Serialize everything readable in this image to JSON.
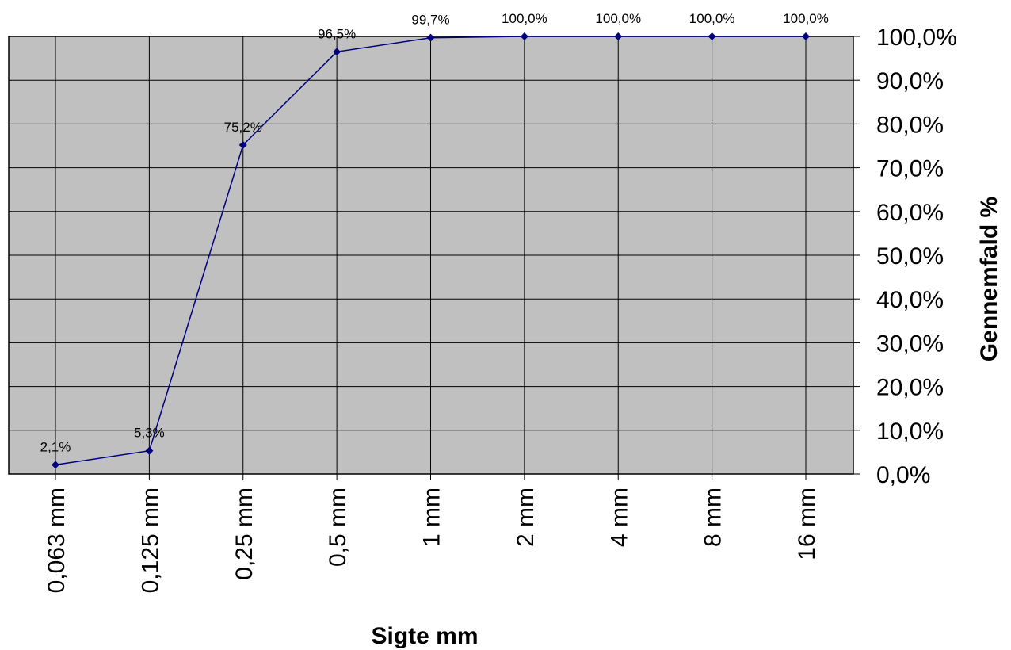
{
  "chart_data": {
    "type": "line",
    "title": "",
    "xlabel": "Sigte mm",
    "ylabel": "Gennemfald %",
    "categories": [
      "0,063 mm",
      "0,125 mm",
      "0,25 mm",
      "0,5 mm",
      "1 mm",
      "2 mm",
      "4 mm",
      "8 mm",
      "16 mm"
    ],
    "series": [
      {
        "values": [
          2.1,
          5.3,
          75.2,
          96.5,
          99.7,
          100.0,
          100.0,
          100.0,
          100.0
        ],
        "data_labels": [
          "2,1%",
          "5,3%",
          "75,2%",
          "96,5%",
          "99,7%",
          "100,0%",
          "100,0%",
          "100,0%",
          "100,0%"
        ],
        "color": "#000080"
      }
    ],
    "ylim": [
      0,
      100
    ],
    "yticks": [
      0,
      10,
      20,
      30,
      40,
      50,
      60,
      70,
      80,
      90,
      100
    ],
    "ytick_labels": [
      "0,0%",
      "10,0%",
      "20,0%",
      "30,0%",
      "40,0%",
      "50,0%",
      "60,0%",
      "70,0%",
      "80,0%",
      "90,0%",
      "100,0%"
    ],
    "y_axis_side": "right",
    "grid": true,
    "legend": "none",
    "plot_background": "#c0c0c0"
  }
}
